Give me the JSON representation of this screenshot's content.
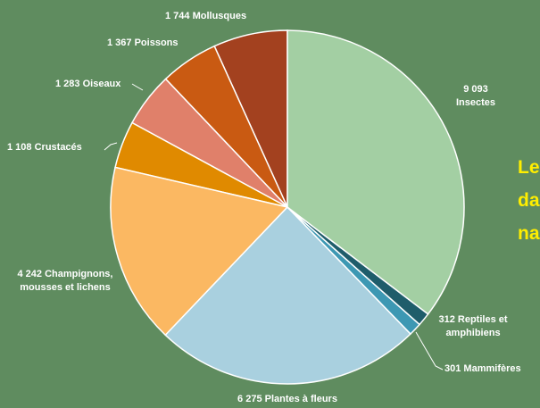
{
  "chart_data": {
    "type": "pie",
    "title_lines": [
      "Le",
      "da",
      "na"
    ],
    "categories": [
      "Insectes",
      "Reptiles et amphibiens",
      "Mammifères",
      "Plantes à fleurs",
      "Champignons, mousses et lichens",
      "Crustacés",
      "Oiseaux",
      "Poissons",
      "Mollusques"
    ],
    "values": [
      9093,
      312,
      301,
      6275,
      4242,
      1108,
      1283,
      1367,
      1744
    ],
    "value_labels": [
      "9 093",
      "312",
      "301",
      "6 275",
      "4 242",
      "1 108",
      "1 283",
      "1 367",
      "1 744"
    ],
    "colors": [
      "#a3cfa3",
      "#1f5d6b",
      "#3d98b3",
      "#a9d0df",
      "#fbb862",
      "#e08a00",
      "#e0806a",
      "#c95a12",
      "#a3411f"
    ]
  }
}
